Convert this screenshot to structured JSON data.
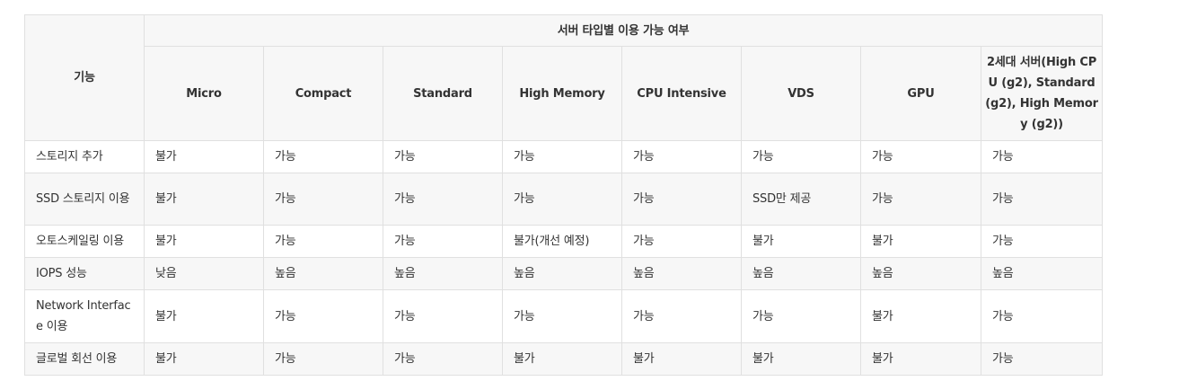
{
  "table": {
    "feature_header": "기능",
    "group_header": "서버 타입별 이용 가능 여부",
    "columns": [
      "Micro",
      "Compact",
      "Standard",
      "High Memory",
      "CPU Intensive",
      "VDS",
      "GPU",
      "2세대 서버(High CPU (g2), Standard (g2), High Memory (g2))"
    ],
    "rows": [
      {
        "feature": "스토리지 추가",
        "values": [
          "불가",
          "가능",
          "가능",
          "가능",
          "가능",
          "가능",
          "가능",
          "가능"
        ]
      },
      {
        "feature": "SSD 스토리지 이용",
        "values": [
          "불가",
          "가능",
          "가능",
          "가능",
          "가능",
          "SSD만 제공",
          "가능",
          "가능"
        ]
      },
      {
        "feature": "오토스케일링 이용",
        "values": [
          "불가",
          "가능",
          "가능",
          "불가(개선 예정)",
          "가능",
          "불가",
          "불가",
          "가능"
        ]
      },
      {
        "feature": "IOPS 성능",
        "values": [
          "낮음",
          "높음",
          "높음",
          "높음",
          "높음",
          "높음",
          "높음",
          "높음"
        ]
      },
      {
        "feature": "Network Interface 이용",
        "values": [
          "불가",
          "가능",
          "가능",
          "가능",
          "가능",
          "가능",
          "불가",
          "가능"
        ]
      },
      {
        "feature": "글로벌 회선 이용",
        "values": [
          "불가",
          "가능",
          "가능",
          "불가",
          "불가",
          "불가",
          "불가",
          "가능"
        ]
      }
    ]
  }
}
